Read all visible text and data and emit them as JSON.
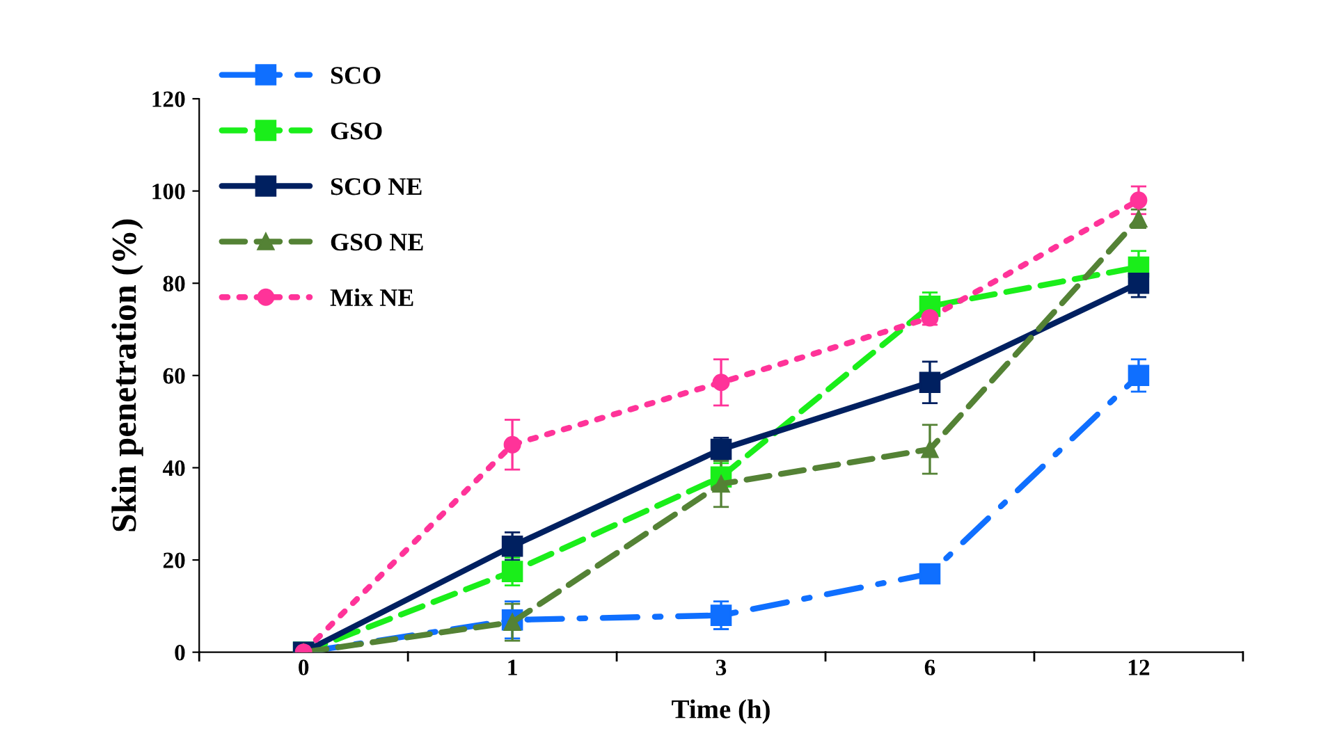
{
  "chart_data": {
    "type": "line",
    "xlabel": "Time (h)",
    "ylabel": "Skin penetration (%)",
    "categories": [
      "0",
      "1",
      "3",
      "6",
      "12"
    ],
    "ylim": [
      0,
      120
    ],
    "yticks": [
      0,
      20,
      40,
      60,
      80,
      100,
      120
    ],
    "grid": false,
    "legend": "top left",
    "series": [
      {
        "name": "SCO",
        "color": "#0f6fff",
        "line_style": "dashdot",
        "marker": "square",
        "values": [
          0,
          7,
          8,
          17,
          60
        ],
        "errors": [
          null,
          4,
          3,
          2,
          3.5
        ]
      },
      {
        "name": "GSO",
        "color": "#1aee1a",
        "line_style": "dashed",
        "marker": "square",
        "values": [
          0,
          17.5,
          38,
          75,
          83.5
        ],
        "errors": [
          null,
          3,
          3,
          3,
          3.5
        ]
      },
      {
        "name": "SCO NE",
        "color": "#002060",
        "line_style": "solid",
        "marker": "square",
        "values": [
          0,
          23,
          44,
          58.5,
          80
        ],
        "errors": [
          null,
          3,
          2.5,
          4.5,
          3
        ]
      },
      {
        "name": "GSO NE",
        "color": "#548235",
        "line_style": "dashed",
        "marker": "triangle",
        "values": [
          0,
          6.5,
          36.5,
          44,
          94
        ],
        "errors": [
          null,
          4,
          5,
          5.3,
          2
        ]
      },
      {
        "name": "Mix NE",
        "color": "#ff3399",
        "line_style": "dotted",
        "marker": "circle",
        "values": [
          0,
          45,
          58.5,
          72.5,
          98
        ],
        "errors": [
          null,
          5.4,
          5,
          1.5,
          3
        ]
      }
    ]
  }
}
